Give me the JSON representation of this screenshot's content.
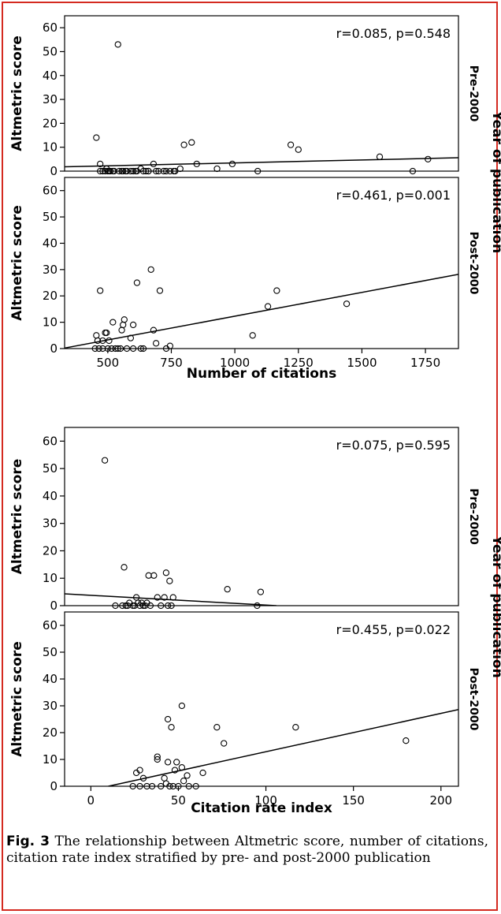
{
  "caption": {
    "label": "Fig. 3",
    "text": "The relationship between Altmetric score, number of citations, citation rate index stratified by pre- and post-2000 publication"
  },
  "colors": {
    "border": "#d42a20",
    "ink": "#000000"
  },
  "chart_data": [
    {
      "type": "scatter",
      "layout": "faceted",
      "facet_label": "Year of publication",
      "xlabel": "Number of citations",
      "ylabel": "Altmetric score",
      "xlim": [
        330,
        1880
      ],
      "ylim": [
        0,
        65
      ],
      "xticks": [
        500,
        750,
        1000,
        1250,
        1500,
        1750
      ],
      "yticks": [
        0,
        10,
        20,
        30,
        40,
        50,
        60
      ],
      "facets": [
        {
          "name": "Pre-2000",
          "stat": "r=0.085, p=0.548",
          "fit": {
            "x": [
              330,
              1880
            ],
            "y": [
              1.8,
              5.6
            ]
          },
          "points": [
            [
              455,
              14
            ],
            [
              470,
              3
            ],
            [
              480,
              0
            ],
            [
              495,
              1
            ],
            [
              505,
              0
            ],
            [
              510,
              0
            ],
            [
              520,
              0
            ],
            [
              540,
              53
            ],
            [
              545,
              0
            ],
            [
              560,
              0
            ],
            [
              575,
              0
            ],
            [
              590,
              0
            ],
            [
              600,
              0
            ],
            [
              615,
              0
            ],
            [
              630,
              1
            ],
            [
              640,
              0
            ],
            [
              650,
              0
            ],
            [
              660,
              0
            ],
            [
              680,
              3
            ],
            [
              690,
              0
            ],
            [
              720,
              0
            ],
            [
              730,
              0
            ],
            [
              745,
              0
            ],
            [
              765,
              0
            ],
            [
              785,
              1
            ],
            [
              800,
              11
            ],
            [
              830,
              12
            ],
            [
              850,
              3
            ],
            [
              930,
              1
            ],
            [
              990,
              3
            ],
            [
              1090,
              0
            ],
            [
              1220,
              11
            ],
            [
              1250,
              9
            ],
            [
              1570,
              6
            ],
            [
              1700,
              0
            ],
            [
              1760,
              5
            ],
            [
              470,
              0
            ],
            [
              490,
              0
            ],
            [
              500,
              0
            ],
            [
              525,
              0
            ],
            [
              555,
              0
            ],
            [
              570,
              0
            ],
            [
              610,
              0
            ],
            [
              660,
              0
            ],
            [
              700,
              0
            ],
            [
              760,
              0
            ]
          ]
        },
        {
          "name": "Post-2000",
          "stat": "r=0.461, p=0.001",
          "fit": {
            "x": [
              330,
              1880
            ],
            "y": [
              0.2,
              28.2
            ]
          },
          "points": [
            [
              455,
              5
            ],
            [
              460,
              3
            ],
            [
              470,
              22
            ],
            [
              480,
              3
            ],
            [
              490,
              6
            ],
            [
              495,
              6
            ],
            [
              505,
              3
            ],
            [
              520,
              10
            ],
            [
              540,
              0
            ],
            [
              555,
              7
            ],
            [
              560,
              9
            ],
            [
              565,
              11
            ],
            [
              590,
              4
            ],
            [
              600,
              9
            ],
            [
              615,
              25
            ],
            [
              630,
              0
            ],
            [
              670,
              30
            ],
            [
              680,
              7
            ],
            [
              690,
              2
            ],
            [
              705,
              22
            ],
            [
              730,
              0
            ],
            [
              745,
              1
            ],
            [
              1070,
              5
            ],
            [
              1130,
              16
            ],
            [
              1165,
              22
            ],
            [
              1440,
              17
            ],
            [
              450,
              0
            ],
            [
              465,
              0
            ],
            [
              480,
              0
            ],
            [
              500,
              0
            ],
            [
              515,
              0
            ],
            [
              530,
              0
            ],
            [
              550,
              0
            ],
            [
              575,
              0
            ],
            [
              600,
              0
            ],
            [
              640,
              0
            ]
          ]
        }
      ]
    },
    {
      "type": "scatter",
      "layout": "faceted",
      "facet_label": "Year of publication",
      "xlabel": "Citation rate index",
      "ylabel": "Altmetric score",
      "xlim": [
        -15,
        210
      ],
      "ylim": [
        0,
        65
      ],
      "xticks": [
        0,
        50,
        100,
        150,
        200
      ],
      "yticks": [
        0,
        10,
        20,
        30,
        40,
        50,
        60
      ],
      "facets": [
        {
          "name": "Pre-2000",
          "stat": "r=0.075, p=0.595",
          "fit": {
            "x": [
              -15,
              106
            ],
            "y": [
              4.3,
              0
            ]
          },
          "points": [
            [
              8,
              53
            ],
            [
              19,
              14
            ],
            [
              33,
              11
            ],
            [
              36,
              11
            ],
            [
              43,
              12
            ],
            [
              45,
              9
            ],
            [
              47,
              3
            ],
            [
              78,
              6
            ],
            [
              97,
              5
            ],
            [
              95,
              0
            ],
            [
              14,
              0
            ],
            [
              18,
              0
            ],
            [
              20,
              0
            ],
            [
              22,
              1
            ],
            [
              24,
              0
            ],
            [
              26,
              3
            ],
            [
              27,
              1
            ],
            [
              28,
              0
            ],
            [
              30,
              0
            ],
            [
              32,
              1
            ],
            [
              34,
              0
            ],
            [
              38,
              3
            ],
            [
              40,
              0
            ],
            [
              42,
              3
            ],
            [
              44,
              0
            ],
            [
              46,
              0
            ],
            [
              21,
              0
            ],
            [
              25,
              0
            ],
            [
              29,
              1
            ],
            [
              31,
              0
            ]
          ]
        },
        {
          "name": "Post-2000",
          "stat": "r=0.455, p=0.022",
          "fit": {
            "x": [
              10,
              210
            ],
            "y": [
              0,
              28.6
            ]
          },
          "points": [
            [
              26,
              5
            ],
            [
              28,
              6
            ],
            [
              30,
              3
            ],
            [
              38,
              11
            ],
            [
              38,
              10
            ],
            [
              42,
              3
            ],
            [
              44,
              25
            ],
            [
              46,
              22
            ],
            [
              48,
              6
            ],
            [
              49,
              9
            ],
            [
              52,
              30
            ],
            [
              52,
              7
            ],
            [
              53,
              2
            ],
            [
              55,
              4
            ],
            [
              64,
              5
            ],
            [
              72,
              22
            ],
            [
              76,
              16
            ],
            [
              117,
              22
            ],
            [
              180,
              17
            ],
            [
              24,
              0
            ],
            [
              28,
              0
            ],
            [
              32,
              0
            ],
            [
              35,
              0
            ],
            [
              40,
              0
            ],
            [
              43,
              1
            ],
            [
              45,
              0
            ],
            [
              47,
              0
            ],
            [
              50,
              0
            ],
            [
              56,
              0
            ],
            [
              60,
              0
            ],
            [
              44,
              9
            ]
          ]
        }
      ]
    }
  ]
}
